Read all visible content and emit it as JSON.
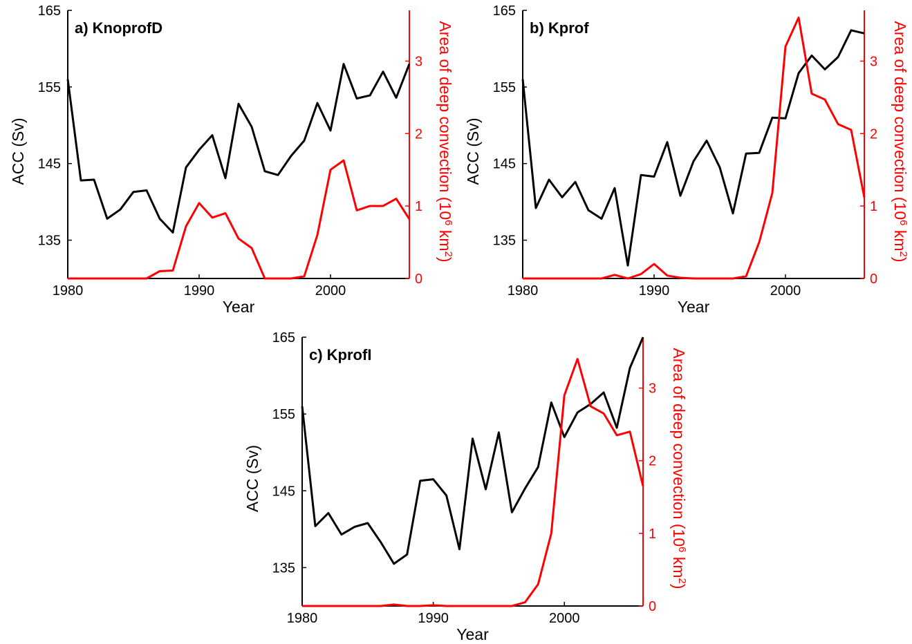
{
  "colors": {
    "left_series": "#000000",
    "right_series": "#ff0000",
    "axes": "#000000"
  },
  "chart_data": [
    {
      "type": "line",
      "title": "a) KnoprofD",
      "xlabel": "Year",
      "ylabel": "ACC (Sv)",
      "ylabel_right": "Area of deep convection (10",
      "ylabel_right_exp1": "6",
      "ylabel_right_mid": " km",
      "ylabel_right_exp2": "2",
      "ylabel_right_end": ")",
      "xlim": [
        1980,
        2006
      ],
      "ylim": [
        130,
        165
      ],
      "ylim_right": [
        0,
        3.7
      ],
      "x_ticks": [
        "1980",
        "1990",
        "2000"
      ],
      "y_ticks": [
        "135",
        "145",
        "155",
        "165"
      ],
      "y_ticks_right": [
        "0",
        "1",
        "2",
        "3"
      ],
      "x": [
        1980,
        1981,
        1982,
        1983,
        1984,
        1985,
        1986,
        1987,
        1988,
        1989,
        1990,
        1991,
        1992,
        1993,
        1994,
        1995,
        1996,
        1997,
        1998,
        1999,
        2000,
        2001,
        2002,
        2003,
        2004,
        2005,
        2006
      ],
      "series": [
        {
          "axis": "left",
          "values": [
            156,
            142.8,
            142.9,
            137.8,
            139,
            141.3,
            141.5,
            137.8,
            136,
            144.5,
            146.8,
            148.7,
            143.1,
            152.8,
            149.8,
            144,
            143.5,
            146,
            148,
            152.9,
            149.3,
            158,
            153.5,
            153.9,
            157,
            153.6,
            158
          ]
        },
        {
          "axis": "right",
          "values": [
            0,
            0,
            0,
            0,
            0,
            0,
            0,
            0.1,
            0.11,
            0.72,
            1.04,
            0.84,
            0.9,
            0.55,
            0.42,
            0,
            0,
            0,
            0.03,
            0.6,
            1.5,
            1.63,
            0.94,
            1,
            1,
            1.1,
            0.82
          ]
        }
      ]
    },
    {
      "type": "line",
      "title": "b) Kprof",
      "xlabel": "Year",
      "ylabel": "ACC (Sv)",
      "ylabel_right": "Area of deep convection (10",
      "ylabel_right_exp1": "6",
      "ylabel_right_mid": " km",
      "ylabel_right_exp2": "2",
      "ylabel_right_end": ")",
      "xlim": [
        1980,
        2006
      ],
      "ylim": [
        130,
        165
      ],
      "ylim_right": [
        0,
        3.7
      ],
      "x_ticks": [
        "1980",
        "1990",
        "2000"
      ],
      "y_ticks": [
        "135",
        "145",
        "155",
        "165"
      ],
      "y_ticks_right": [
        "0",
        "1",
        "2",
        "3"
      ],
      "x": [
        1980,
        1981,
        1982,
        1983,
        1984,
        1985,
        1986,
        1987,
        1988,
        1989,
        1990,
        1991,
        1992,
        1993,
        1994,
        1995,
        1996,
        1997,
        1998,
        1999,
        2000,
        2001,
        2002,
        2003,
        2004,
        2005,
        2006
      ],
      "series": [
        {
          "axis": "left",
          "values": [
            156,
            139.2,
            142.9,
            140.6,
            142.6,
            138.9,
            137.8,
            141.8,
            131.7,
            143.5,
            143.3,
            147.8,
            140.8,
            145.3,
            148,
            144.5,
            138.5,
            146.3,
            146.4,
            151,
            150.9,
            156.8,
            159.1,
            157.3,
            158.9,
            162.4,
            162
          ]
        },
        {
          "axis": "right",
          "values": [
            0,
            0,
            0,
            0,
            0,
            0,
            0,
            0.05,
            0,
            0.06,
            0.2,
            0.04,
            0.01,
            0,
            0,
            0,
            0,
            0.03,
            0.5,
            1.18,
            3.2,
            3.6,
            2.55,
            2.47,
            2.13,
            2.05,
            1.12
          ]
        }
      ]
    },
    {
      "type": "line",
      "title": "c) KprofI",
      "xlabel": "Year",
      "ylabel": "ACC (Sv)",
      "ylabel_right": "Area of deep convection (10",
      "ylabel_right_exp1": "6",
      "ylabel_right_mid": " km",
      "ylabel_right_exp2": "2",
      "ylabel_right_end": ")",
      "xlim": [
        1980,
        2006
      ],
      "ylim": [
        130,
        165
      ],
      "ylim_right": [
        0,
        3.7
      ],
      "x_ticks": [
        "1980",
        "1990",
        "2000"
      ],
      "y_ticks": [
        "135",
        "145",
        "155",
        "165"
      ],
      "y_ticks_right": [
        "0",
        "1",
        "2",
        "3"
      ],
      "x": [
        1980,
        1981,
        1982,
        1983,
        1984,
        1985,
        1986,
        1987,
        1988,
        1989,
        1990,
        1991,
        1992,
        1993,
        1994,
        1995,
        1996,
        1997,
        1998,
        1999,
        2000,
        2001,
        2002,
        2003,
        2004,
        2005,
        2006
      ],
      "series": [
        {
          "axis": "left",
          "values": [
            156,
            140.4,
            142.1,
            139.3,
            140.3,
            140.8,
            138.3,
            135.5,
            136.7,
            146.3,
            146.5,
            144.4,
            137.4,
            151.8,
            145.2,
            152.6,
            142.2,
            145.3,
            148.1,
            156.5,
            152,
            155.2,
            156.3,
            157.8,
            153.2,
            161,
            165
          ]
        },
        {
          "axis": "right",
          "values": [
            0,
            0,
            0,
            0,
            0,
            0,
            0,
            0.02,
            0,
            0,
            0.01,
            0,
            0,
            0,
            0,
            0,
            0,
            0.05,
            0.3,
            1,
            2.9,
            3.4,
            2.75,
            2.65,
            2.35,
            2.4,
            1.65
          ]
        }
      ]
    }
  ]
}
